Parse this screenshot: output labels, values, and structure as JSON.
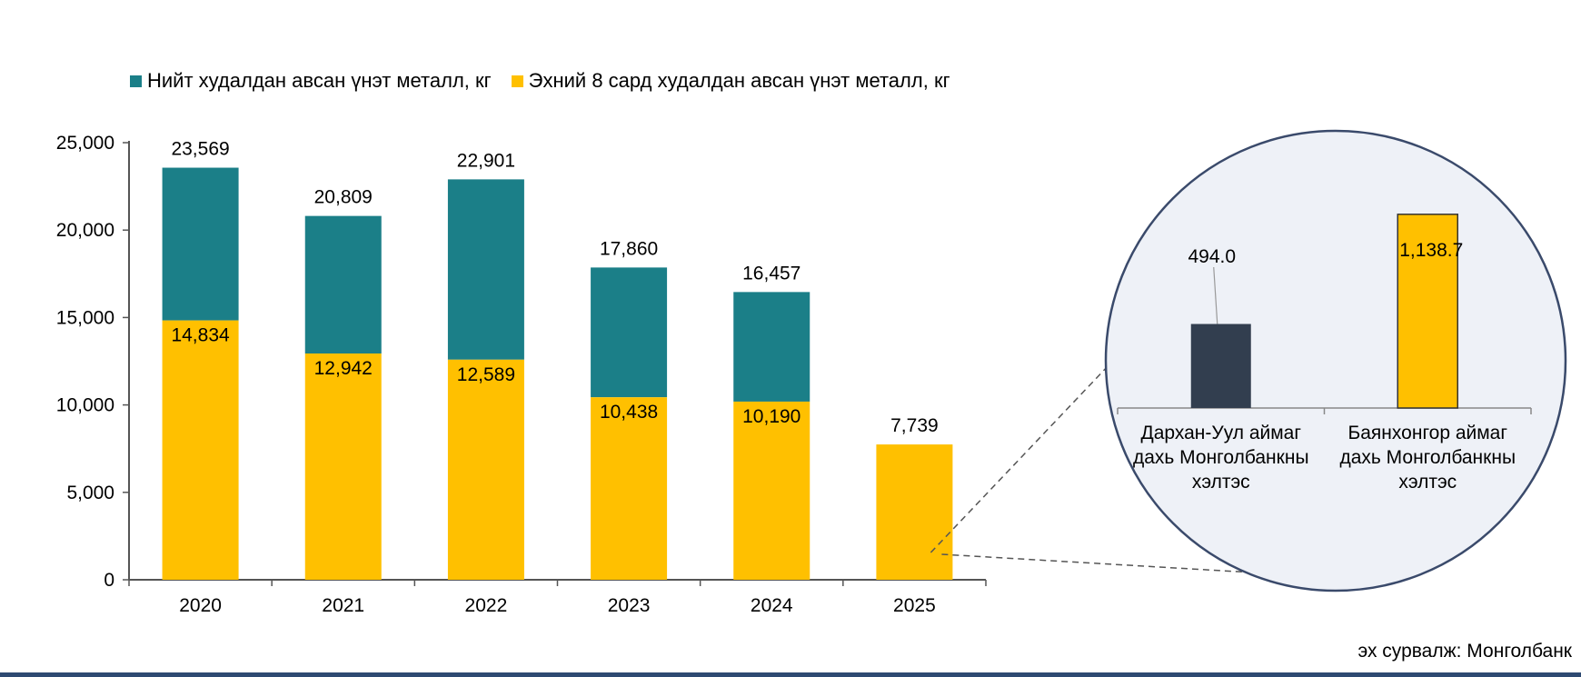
{
  "legend": {
    "total_label": "Нийт худалдан авсан үнэт металл, кг",
    "first8_label": "Эхний 8 сард худалдан авсан үнэт металл, кг"
  },
  "source": "эх сурвалж: Монголбанк",
  "colors": {
    "total": "#1b7f88",
    "first8": "#ffc000",
    "darkhan": "#323e4f",
    "circle_fill": "#eef1f7",
    "circle_stroke": "#3a4a6b"
  },
  "chart_data": [
    {
      "type": "bar",
      "categories": [
        "2020",
        "2021",
        "2022",
        "2023",
        "2024",
        "2025"
      ],
      "series": [
        {
          "name": "Нийт худалдан авсан үнэт металл, кг",
          "values": [
            23569,
            20809,
            22901,
            17860,
            16457,
            null
          ],
          "labels": [
            "23,569",
            "20,809",
            "22,901",
            "17,860",
            "16,457",
            ""
          ]
        },
        {
          "name": "Эхний 8 сард худалдан авсан үнэт металл, кг",
          "values": [
            14834,
            12942,
            12589,
            10438,
            10190,
            7739
          ],
          "labels": [
            "14,834",
            "12,942",
            "12,589",
            "10,438",
            "10,190",
            "7,739"
          ]
        }
      ],
      "yticks": [
        "0",
        "5,000",
        "10,000",
        "15,000",
        "20,000",
        "25,000"
      ],
      "ylim": [
        0,
        25000
      ],
      "grid": false,
      "legend_position": "top-left"
    },
    {
      "type": "bar",
      "categories": [
        "Дархан-Уул аймаг дахь Монголбанкны хэлтэс",
        "Баянхонгор аймаг дахь Монголбанкны хэлтэс"
      ],
      "category_lines": [
        [
          "Дархан-Уул аймаг",
          "дахь Монголбанкны",
          "хэлтэс"
        ],
        [
          "Баянхонгор аймаг",
          "дахь Монголбанкны",
          "хэлтэс"
        ]
      ],
      "values": [
        494.0,
        1138.7
      ],
      "labels": [
        "494.0",
        "1,138.7"
      ],
      "ylim": [
        0,
        1250
      ]
    }
  ]
}
